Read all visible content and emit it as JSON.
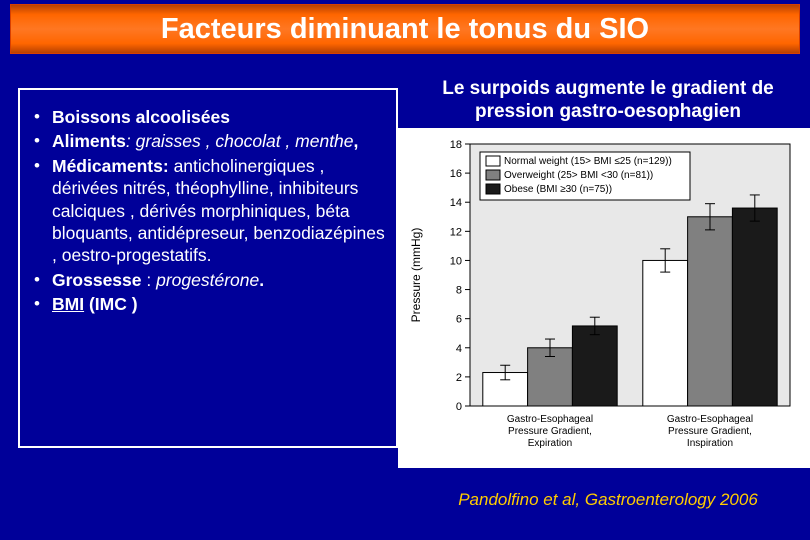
{
  "title": "Facteurs diminuant le tonus du SIO",
  "bullets": {
    "b1_bold": "Boissons alcoolisées",
    "b2_bold": "Aliments",
    "b2_italic": ": graisses , chocolat , menthe",
    "b2_comma": ",",
    "b3_bold": "Médicaments",
    "b3_colon": ":",
    "b3_rest": " anticholinergiques , dérivées nitrés, théophylline, inhibiteurs calciques , dérivés morphiniques, béta bloquants, antidépreseur, benzodiazépines , oestro-progestatifs.",
    "b4_bold": "Grossesse ",
    "b4_colon": ": ",
    "b4_italic": "progestérone",
    "b4_dot": ".",
    "b5_bold_u": "BMI",
    "b5_rest": "   (IMC )"
  },
  "chart_title": "Le surpoids augmente le gradient de pression gastro-oesophagien",
  "chart": {
    "type": "bar",
    "background_color": "#ffffff",
    "plot_bg": "#e8e8e8",
    "y_label": "Pressure (mmHg)",
    "y_label_fontsize": 12,
    "ylim": [
      0,
      18
    ],
    "ytick_step": 2,
    "groups": [
      {
        "label": "Gastro-Esophageal Pressure Gradient, Expiration"
      },
      {
        "label": "Gastro-Esophageal Pressure Gradient, Inspiration"
      }
    ],
    "series": [
      {
        "name": "Normal weight (15> BMI ≤25 (n=129))",
        "color": "#ffffff",
        "values": [
          2.3,
          10.0
        ],
        "err": [
          0.5,
          0.8
        ]
      },
      {
        "name": "Overweight (25> BMI <30 (n=81))",
        "color": "#808080",
        "values": [
          4.0,
          13.0
        ],
        "err": [
          0.6,
          0.9
        ]
      },
      {
        "name": "Obese (BMI ≥30 (n=75))",
        "color": "#1a1a1a",
        "values": [
          5.5,
          13.6
        ],
        "err": [
          0.6,
          0.9
        ]
      }
    ],
    "bar_width": 0.28,
    "axis_color": "#000000",
    "tick_fontsize": 11,
    "legend_fontsize": 10
  },
  "citation": "Pandolfino et al, Gastroenterology 2006"
}
